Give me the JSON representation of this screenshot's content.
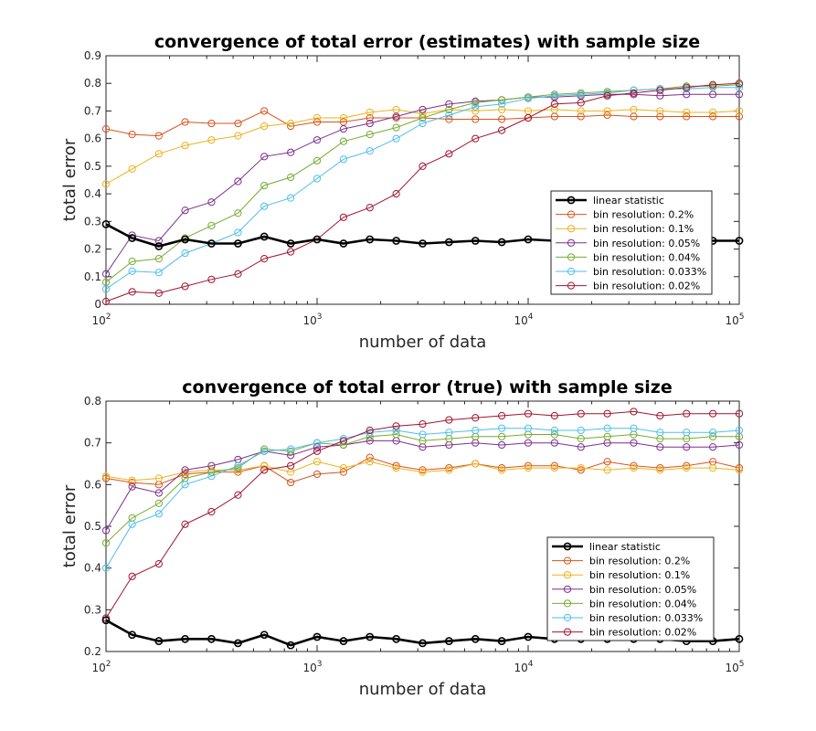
{
  "chart_data": [
    {
      "type": "line",
      "title": "convergence of total error (estimates) with sample size",
      "xlabel": "number of data",
      "ylabel": "total error",
      "xscale": "log",
      "xlim": [
        100,
        100000
      ],
      "ylim": [
        0,
        0.9
      ],
      "yticks": [
        "0",
        "0.1",
        "0.2",
        "0.3",
        "0.4",
        "0.5",
        "0.6",
        "0.7",
        "0.8",
        "0.9"
      ],
      "xticks": [
        {
          "base": "10",
          "exp": "2"
        },
        {
          "base": "10",
          "exp": "3"
        },
        {
          "base": "10",
          "exp": "4"
        },
        {
          "base": "10",
          "exp": "5"
        }
      ],
      "grid": false,
      "legend_position": "lower-right",
      "x": [
        100,
        133,
        178,
        237,
        316,
        422,
        562,
        750,
        1000,
        1334,
        1778,
        2371,
        3162,
        4217,
        5623,
        7499,
        10000,
        13335,
        17783,
        23714,
        31623,
        42170,
        56234,
        74989,
        100000
      ],
      "series": [
        {
          "name": "linear statistic",
          "color": "#000000",
          "thick": true,
          "values": [
            0.29,
            0.24,
            0.21,
            0.235,
            0.22,
            0.22,
            0.245,
            0.22,
            0.235,
            0.22,
            0.235,
            0.23,
            0.22,
            0.225,
            0.23,
            0.225,
            0.235,
            0.23,
            0.23,
            0.23,
            0.23,
            0.23,
            0.23,
            0.23,
            0.23
          ]
        },
        {
          "name": "bin resolution: 0.2%",
          "color": "#D95319",
          "values": [
            0.635,
            0.615,
            0.61,
            0.66,
            0.655,
            0.655,
            0.7,
            0.645,
            0.66,
            0.66,
            0.675,
            0.675,
            0.675,
            0.67,
            0.67,
            0.67,
            0.675,
            0.68,
            0.68,
            0.685,
            0.68,
            0.68,
            0.68,
            0.68,
            0.68
          ]
        },
        {
          "name": "bin resolution: 0.1%",
          "color": "#EDB120",
          "values": [
            0.435,
            0.49,
            0.545,
            0.575,
            0.595,
            0.61,
            0.645,
            0.655,
            0.675,
            0.675,
            0.695,
            0.705,
            0.69,
            0.705,
            0.7,
            0.705,
            0.7,
            0.705,
            0.7,
            0.7,
            0.705,
            0.7,
            0.695,
            0.695,
            0.7
          ]
        },
        {
          "name": "bin resolution: 0.05%",
          "color": "#7E2F8E",
          "values": [
            0.11,
            0.25,
            0.23,
            0.34,
            0.37,
            0.445,
            0.535,
            0.55,
            0.595,
            0.635,
            0.655,
            0.68,
            0.705,
            0.725,
            0.735,
            0.74,
            0.75,
            0.75,
            0.755,
            0.76,
            0.76,
            0.755,
            0.76,
            0.76,
            0.76
          ]
        },
        {
          "name": "bin resolution: 0.04%",
          "color": "#77AC30",
          "values": [
            0.08,
            0.155,
            0.165,
            0.24,
            0.285,
            0.33,
            0.43,
            0.46,
            0.52,
            0.59,
            0.615,
            0.64,
            0.675,
            0.705,
            0.73,
            0.74,
            0.75,
            0.76,
            0.765,
            0.77,
            0.775,
            0.78,
            0.79,
            0.79,
            0.795
          ]
        },
        {
          "name": "bin resolution: 0.033%",
          "color": "#4DBEEE",
          "values": [
            0.055,
            0.12,
            0.115,
            0.185,
            0.22,
            0.26,
            0.355,
            0.385,
            0.455,
            0.525,
            0.555,
            0.6,
            0.655,
            0.685,
            0.715,
            0.725,
            0.745,
            0.755,
            0.76,
            0.765,
            0.775,
            0.78,
            0.78,
            0.785,
            0.785
          ]
        },
        {
          "name": "bin resolution: 0.02%",
          "color": "#A2142F",
          "values": [
            0.01,
            0.045,
            0.04,
            0.065,
            0.09,
            0.11,
            0.165,
            0.19,
            0.235,
            0.315,
            0.35,
            0.4,
            0.5,
            0.545,
            0.6,
            0.63,
            0.675,
            0.725,
            0.73,
            0.755,
            0.765,
            0.775,
            0.785,
            0.795,
            0.8
          ]
        }
      ]
    },
    {
      "type": "line",
      "title": "convergence of total error (true) with sample size",
      "xlabel": "number of data",
      "ylabel": "total error",
      "xscale": "log",
      "xlim": [
        100,
        100000
      ],
      "ylim": [
        0.2,
        0.8
      ],
      "yticks": [
        "0.2",
        "0.3",
        "0.4",
        "0.5",
        "0.6",
        "0.7",
        "0.8"
      ],
      "xticks": [
        {
          "base": "10",
          "exp": "2"
        },
        {
          "base": "10",
          "exp": "3"
        },
        {
          "base": "10",
          "exp": "4"
        },
        {
          "base": "10",
          "exp": "5"
        }
      ],
      "grid": false,
      "legend_position": "lower-right",
      "x": [
        100,
        133,
        178,
        237,
        316,
        422,
        562,
        750,
        1000,
        1334,
        1778,
        2371,
        3162,
        4217,
        5623,
        7499,
        10000,
        13335,
        17783,
        23714,
        31623,
        42170,
        56234,
        74989,
        100000
      ],
      "series": [
        {
          "name": "linear statistic",
          "color": "#000000",
          "thick": true,
          "values": [
            0.275,
            0.24,
            0.225,
            0.23,
            0.23,
            0.22,
            0.24,
            0.215,
            0.235,
            0.225,
            0.235,
            0.23,
            0.22,
            0.225,
            0.23,
            0.225,
            0.235,
            0.23,
            0.23,
            0.23,
            0.23,
            0.23,
            0.225,
            0.225,
            0.23
          ]
        },
        {
          "name": "bin resolution: 0.2%",
          "color": "#D95319",
          "values": [
            0.615,
            0.605,
            0.6,
            0.625,
            0.63,
            0.63,
            0.645,
            0.605,
            0.625,
            0.63,
            0.665,
            0.645,
            0.635,
            0.64,
            0.65,
            0.64,
            0.645,
            0.645,
            0.635,
            0.655,
            0.645,
            0.64,
            0.645,
            0.655,
            0.64
          ]
        },
        {
          "name": "bin resolution: 0.1%",
          "color": "#EDB120",
          "values": [
            0.62,
            0.61,
            0.615,
            0.63,
            0.635,
            0.635,
            0.645,
            0.63,
            0.655,
            0.64,
            0.655,
            0.64,
            0.63,
            0.635,
            0.65,
            0.635,
            0.64,
            0.64,
            0.64,
            0.635,
            0.64,
            0.635,
            0.64,
            0.64,
            0.635
          ]
        },
        {
          "name": "bin resolution: 0.05%",
          "color": "#7E2F8E",
          "values": [
            0.49,
            0.595,
            0.58,
            0.635,
            0.645,
            0.66,
            0.68,
            0.67,
            0.69,
            0.695,
            0.705,
            0.705,
            0.69,
            0.695,
            0.7,
            0.695,
            0.7,
            0.7,
            0.69,
            0.7,
            0.7,
            0.69,
            0.69,
            0.69,
            0.695
          ]
        },
        {
          "name": "bin resolution: 0.04%",
          "color": "#77AC30",
          "values": [
            0.46,
            0.52,
            0.555,
            0.615,
            0.63,
            0.64,
            0.685,
            0.68,
            0.7,
            0.695,
            0.715,
            0.72,
            0.705,
            0.71,
            0.715,
            0.715,
            0.72,
            0.72,
            0.71,
            0.715,
            0.72,
            0.71,
            0.71,
            0.715,
            0.715
          ]
        },
        {
          "name": "bin resolution: 0.033%",
          "color": "#4DBEEE",
          "values": [
            0.4,
            0.505,
            0.53,
            0.6,
            0.62,
            0.645,
            0.68,
            0.685,
            0.7,
            0.71,
            0.725,
            0.73,
            0.72,
            0.725,
            0.73,
            0.735,
            0.735,
            0.73,
            0.73,
            0.735,
            0.735,
            0.725,
            0.725,
            0.725,
            0.73
          ]
        },
        {
          "name": "bin resolution: 0.02%",
          "color": "#A2142F",
          "values": [
            0.28,
            0.38,
            0.41,
            0.505,
            0.535,
            0.575,
            0.635,
            0.645,
            0.68,
            0.705,
            0.73,
            0.74,
            0.745,
            0.755,
            0.76,
            0.765,
            0.77,
            0.765,
            0.77,
            0.77,
            0.775,
            0.765,
            0.77,
            0.77,
            0.77
          ]
        }
      ]
    }
  ]
}
